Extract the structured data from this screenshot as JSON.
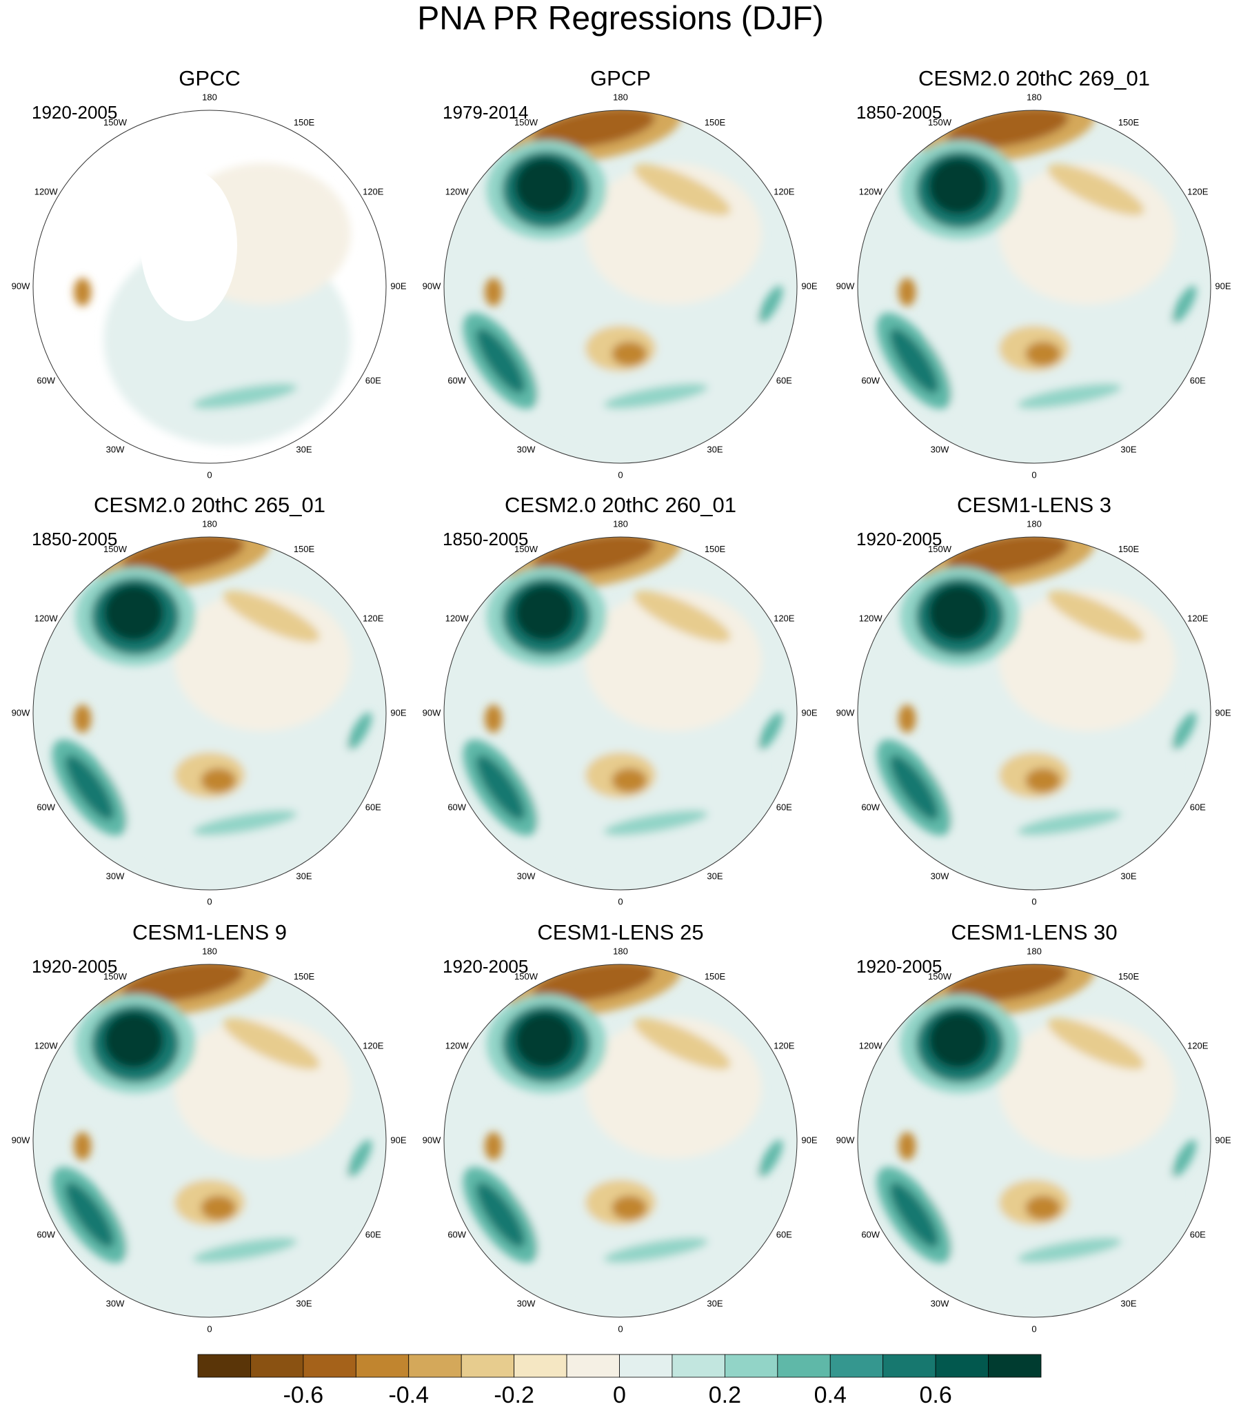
{
  "title": "PNA PR Regressions (DJF)",
  "lon_labels": [
    "180",
    "150E",
    "120E",
    "90E",
    "60E",
    "30E",
    "0",
    "30W",
    "60W",
    "90W",
    "120W",
    "150W"
  ],
  "panels": [
    {
      "title": "GPCC",
      "period": "1920-2005"
    },
    {
      "title": "GPCP",
      "period": "1979-2014"
    },
    {
      "title": "CESM2.0 20thC 269_01",
      "period": "1850-2005"
    },
    {
      "title": "CESM2.0 20thC 265_01",
      "period": "1850-2005"
    },
    {
      "title": "CESM2.0 20thC 260_01",
      "period": "1850-2005"
    },
    {
      "title": "CESM1-LENS 3",
      "period": "1920-2005"
    },
    {
      "title": "CESM1-LENS 9",
      "period": "1920-2005"
    },
    {
      "title": "CESM1-LENS 25",
      "period": "1920-2005"
    },
    {
      "title": "CESM1-LENS 30",
      "period": "1920-2005"
    }
  ],
  "colorbar": {
    "colors": [
      "#5a3508",
      "#8a5212",
      "#a5621a",
      "#c1852f",
      "#d4a85a",
      "#e7cc8e",
      "#f5e7c3",
      "#f5f0e4",
      "#e3f0ee",
      "#c2e6df",
      "#92d4c7",
      "#5fb8a8",
      "#35978f",
      "#17786f",
      "#02584e",
      "#003c30"
    ],
    "clim": [
      -0.8,
      0.8
    ],
    "ticks": [
      -0.6,
      -0.4,
      -0.2,
      0,
      0.2,
      0.4,
      0.6
    ]
  }
}
